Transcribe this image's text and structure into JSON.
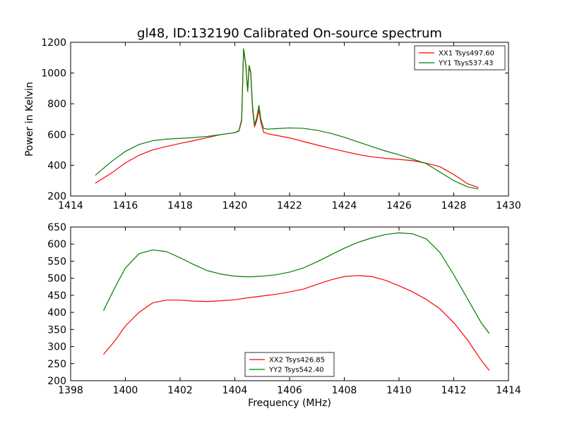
{
  "chart_data": [
    {
      "type": "line",
      "title": "gl48, ID:132190 Calibrated On-source spectrum",
      "ylabel": "Power in Kelvin",
      "xlabel": "",
      "xlim": [
        1414,
        1430
      ],
      "ylim": [
        200,
        1200
      ],
      "xticks": [
        1414,
        1416,
        1418,
        1420,
        1422,
        1424,
        1426,
        1428,
        1430
      ],
      "yticks": [
        200,
        400,
        600,
        800,
        1000,
        1200
      ],
      "legend_position": "top-right",
      "series": [
        {
          "name": "XX1 Tsys497.60",
          "color": "#ff0000",
          "x": [
            1414.9,
            1415.5,
            1416.0,
            1416.5,
            1417.0,
            1417.5,
            1418.0,
            1418.5,
            1419.0,
            1419.5,
            1420.0,
            1420.15,
            1420.25,
            1420.32,
            1420.4,
            1420.47,
            1420.52,
            1420.58,
            1420.65,
            1420.72,
            1420.8,
            1420.88,
            1420.95,
            1421.05,
            1421.2,
            1421.5,
            1422.0,
            1422.5,
            1423.0,
            1423.5,
            1424.0,
            1424.5,
            1425.0,
            1425.5,
            1426.0,
            1426.5,
            1427.0,
            1427.5,
            1428.0,
            1428.5,
            1428.9
          ],
          "y": [
            283,
            350,
            415,
            465,
            500,
            522,
            542,
            560,
            580,
            600,
            612,
            622,
            690,
            1155,
            1050,
            880,
            1040,
            1000,
            760,
            650,
            690,
            760,
            680,
            615,
            605,
            595,
            578,
            555,
            532,
            510,
            490,
            470,
            455,
            445,
            438,
            430,
            413,
            390,
            340,
            280,
            255
          ]
        },
        {
          "name": "YY1 Tsys537.43",
          "color": "#007f00",
          "x": [
            1414.9,
            1415.5,
            1416.0,
            1416.5,
            1417.0,
            1417.5,
            1418.0,
            1418.5,
            1419.0,
            1419.5,
            1420.0,
            1420.15,
            1420.25,
            1420.32,
            1420.4,
            1420.47,
            1420.52,
            1420.58,
            1420.65,
            1420.72,
            1420.8,
            1420.88,
            1420.95,
            1421.05,
            1421.2,
            1421.5,
            1422.0,
            1422.5,
            1423.0,
            1423.5,
            1424.0,
            1424.5,
            1425.0,
            1425.5,
            1426.0,
            1426.5,
            1427.0,
            1427.5,
            1428.0,
            1428.5,
            1428.9
          ],
          "y": [
            335,
            425,
            490,
            535,
            560,
            570,
            575,
            580,
            588,
            600,
            612,
            625,
            700,
            1158,
            1060,
            880,
            1050,
            1010,
            780,
            660,
            710,
            790,
            700,
            640,
            635,
            638,
            643,
            640,
            628,
            608,
            582,
            552,
            522,
            493,
            468,
            440,
            410,
            355,
            300,
            260,
            245
          ]
        }
      ]
    },
    {
      "type": "line",
      "title": "",
      "xlabel": "Frequency (MHz)",
      "ylabel": "",
      "xlim": [
        1398,
        1414
      ],
      "ylim": [
        200,
        650
      ],
      "xticks": [
        1398,
        1400,
        1402,
        1404,
        1406,
        1408,
        1410,
        1412,
        1414
      ],
      "yticks": [
        200,
        250,
        300,
        350,
        400,
        450,
        500,
        550,
        600,
        650
      ],
      "legend_position": "bottom-center",
      "series": [
        {
          "name": "XX2 Tsys426.85",
          "color": "#ff0000",
          "x": [
            1399.2,
            1399.6,
            1400.0,
            1400.5,
            1401.0,
            1401.5,
            1402.0,
            1402.5,
            1403.0,
            1403.5,
            1404.0,
            1404.5,
            1405.0,
            1405.5,
            1406.0,
            1406.5,
            1407.0,
            1407.5,
            1408.0,
            1408.5,
            1409.0,
            1409.5,
            1410.0,
            1410.5,
            1411.0,
            1411.5,
            1412.0,
            1412.5,
            1413.0,
            1413.3
          ],
          "y": [
            277,
            315,
            360,
            400,
            428,
            436,
            436,
            433,
            432,
            434,
            437,
            443,
            448,
            453,
            460,
            468,
            482,
            495,
            505,
            508,
            505,
            494,
            478,
            460,
            438,
            410,
            370,
            320,
            260,
            230
          ]
        },
        {
          "name": "YY2 Tsys542.40",
          "color": "#007f00",
          "x": [
            1399.2,
            1399.6,
            1400.0,
            1400.5,
            1401.0,
            1401.5,
            1402.0,
            1402.5,
            1403.0,
            1403.5,
            1404.0,
            1404.5,
            1405.0,
            1405.5,
            1406.0,
            1406.5,
            1407.0,
            1407.5,
            1408.0,
            1408.5,
            1409.0,
            1409.5,
            1410.0,
            1410.5,
            1411.0,
            1411.5,
            1412.0,
            1412.5,
            1413.0,
            1413.3
          ],
          "y": [
            405,
            470,
            530,
            572,
            583,
            578,
            560,
            540,
            522,
            512,
            506,
            504,
            506,
            510,
            518,
            530,
            548,
            568,
            588,
            605,
            618,
            628,
            633,
            630,
            615,
            575,
            510,
            440,
            370,
            338
          ]
        }
      ]
    }
  ]
}
